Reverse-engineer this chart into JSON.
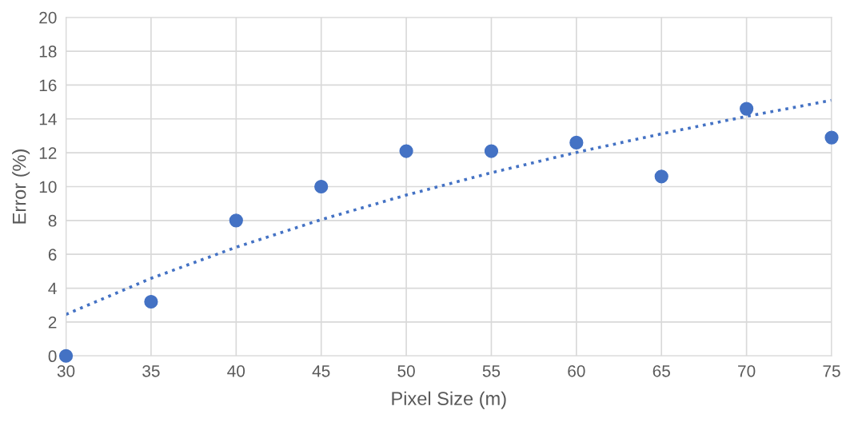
{
  "chart_data": {
    "type": "scatter",
    "xlabel": "Pixel Size (m)",
    "ylabel": "Error (%)",
    "x": [
      30,
      35,
      40,
      45,
      50,
      55,
      60,
      65,
      70,
      75
    ],
    "series": [
      {
        "color": "#4472c4",
        "marker": "circle",
        "values": [
          0,
          3.2,
          8.0,
          10.0,
          12.1,
          12.1,
          12.6,
          10.6,
          14.6,
          12.9
        ]
      },
      {
        "type": "line",
        "color": "#4472c4",
        "line_style": "dotted",
        "marker": "none",
        "x": [
          30,
          35,
          40,
          45,
          50,
          55,
          60,
          65,
          70,
          75
        ],
        "values": [
          2.45,
          4.58,
          6.42,
          8.05,
          9.5,
          10.82,
          12.02,
          13.12,
          14.15,
          15.1
        ]
      }
    ],
    "xlim": [
      30,
      75
    ],
    "xticks": [
      30,
      35,
      40,
      45,
      50,
      55,
      60,
      65,
      70,
      75
    ],
    "ylim": [
      0,
      20
    ],
    "yticks": [
      0,
      2,
      4,
      6,
      8,
      10,
      12,
      14,
      16,
      18,
      20
    ],
    "grid": true
  }
}
